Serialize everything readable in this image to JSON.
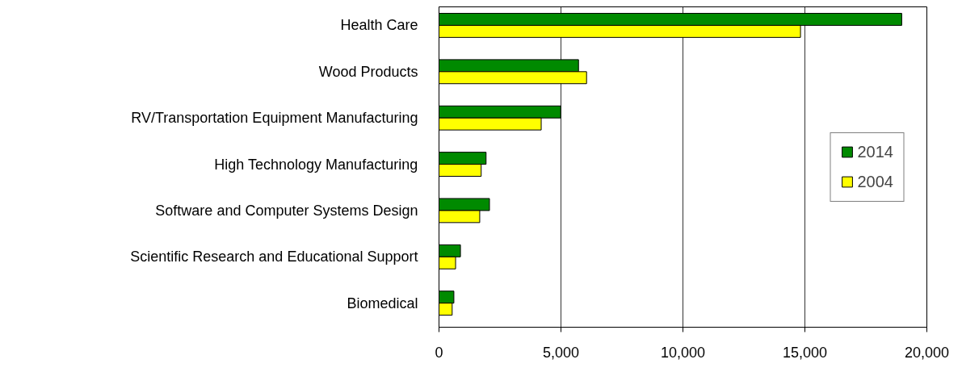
{
  "chart_data": {
    "type": "bar",
    "orientation": "horizontal",
    "categories": [
      "Health Care",
      "Wood Products",
      "RV/Transportation Equipment Manufacturing",
      "High Technology Manufacturing",
      "Software and Computer Systems Design",
      "Scientific Research and Educational Support",
      "Biomedical"
    ],
    "series": [
      {
        "name": "2014",
        "color": "#008a00",
        "values": [
          18970,
          5720,
          4990,
          1930,
          2070,
          880,
          610
        ]
      },
      {
        "name": "2004",
        "color": "#ffff00",
        "values": [
          14820,
          6050,
          4190,
          1730,
          1670,
          680,
          540
        ]
      }
    ],
    "xlim": [
      0,
      20000
    ],
    "xticks": [
      {
        "value": 0,
        "label": "0"
      },
      {
        "value": 5000,
        "label": "5,000"
      },
      {
        "value": 10000,
        "label": "10,000"
      },
      {
        "value": 15000,
        "label": "15,000"
      },
      {
        "value": 20000,
        "label": "20,000"
      }
    ],
    "grid": "x",
    "legend": "right"
  }
}
